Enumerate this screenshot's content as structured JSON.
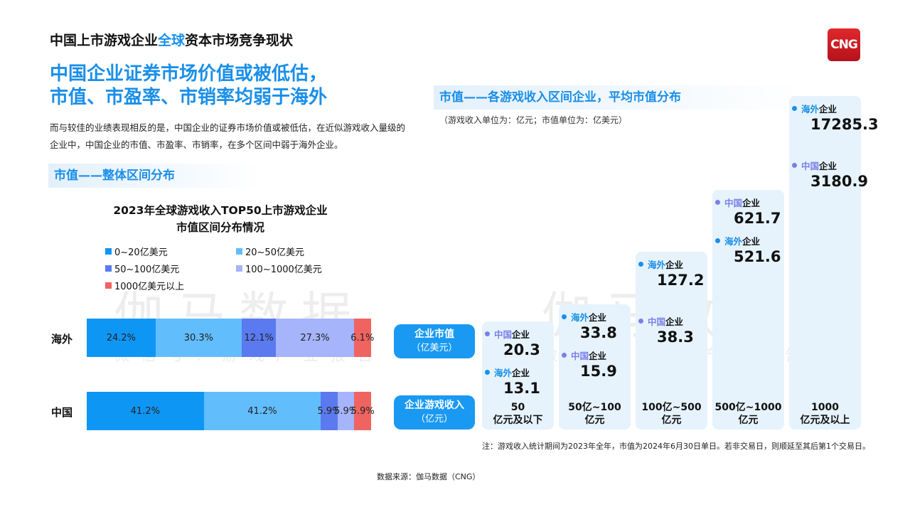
{
  "header": {
    "title_part1": "中国上市游戏企业",
    "title_highlight": "全球",
    "title_part2": "资本市场竞争现状",
    "logo": "CNG"
  },
  "headline": {
    "line1": "中国企业证券市场价值或被低估，",
    "line2": "市值、市盈率、市销率均弱于海外"
  },
  "description": "而与较佳的业绩表现相反的是，中国企业的证券市场价值或被低估，在近似游戏收入量级的企业中，中国企业的市值、市盈率、市销率，在多个区间中弱于海外企业。",
  "section1": "市值——整体区间分布",
  "section2": "市值——各游戏收入区间企业，平均市值分布",
  "unit_note": "（游戏收入单位为：亿元；市值单位为：亿美元）",
  "watermark": {
    "main": "伽马数据",
    "sub": "微信号：游戏产业报告"
  },
  "row_pills": [
    {
      "title": "企业市值",
      "unit": "（亿美元）"
    },
    {
      "title": "企业游戏收入",
      "unit": "（亿元）"
    }
  ],
  "footnote": "注：游戏收入统计期间为2023年全年，市值为2024年6月30日单日。若非交易日，则顺延至其后第1个交易日。",
  "source": "数据来源：伽马数据（CNG）",
  "colors": {
    "accent": "#1a8fe8",
    "china": "#7b7fe8",
    "overseas": "#1a8fe8"
  },
  "chart_data": [
    {
      "type": "bar",
      "orientation": "horizontal",
      "stacked": "percent",
      "title_line1": "2023年全球游戏收入TOP50上市游戏企业",
      "title_line2": "市值区间分布情况",
      "categories": [
        "海外",
        "中国"
      ],
      "legend_position": "top",
      "series": [
        {
          "name": "0~20亿美元",
          "color": "#0e96f5",
          "values": [
            24.2,
            41.2
          ],
          "labels": [
            "24.2%",
            "41.2%"
          ]
        },
        {
          "name": "20~50亿美元",
          "color": "#62bdfc",
          "values": [
            30.3,
            41.2
          ],
          "labels": [
            "30.3%",
            "41.2%"
          ]
        },
        {
          "name": "50~100亿美元",
          "color": "#5b7af0",
          "values": [
            12.1,
            5.9
          ],
          "labels": [
            "12.1%",
            "5.9%"
          ]
        },
        {
          "name": "100~1000亿美元",
          "color": "#a5b4fb",
          "values": [
            27.3,
            5.9
          ],
          "labels": [
            "27.3%",
            "5.9%"
          ]
        },
        {
          "name": "1000亿美元以上",
          "color": "#ef6461",
          "values": [
            6.1,
            5.9
          ],
          "labels": [
            "6.1%",
            "5.9%"
          ]
        }
      ]
    },
    {
      "type": "table",
      "columns": [
        {
          "range_line1": "50",
          "range_line2": "亿元及以下",
          "entries": [
            {
              "group": "中国",
              "suffix": "企业",
              "value": "20.3"
            },
            {
              "group": "海外",
              "suffix": "企业",
              "value": "13.1"
            }
          ]
        },
        {
          "range_line1": "50亿~100",
          "range_line2": "亿元",
          "entries": [
            {
              "group": "海外",
              "suffix": "企业",
              "value": "33.8"
            },
            {
              "group": "中国",
              "suffix": "企业",
              "value": "15.9"
            }
          ]
        },
        {
          "range_line1": "100亿~500",
          "range_line2": "亿元",
          "entries": [
            {
              "group": "海外",
              "suffix": "企业",
              "value": "127.2"
            },
            {
              "group": "中国",
              "suffix": "企业",
              "value": "38.3"
            }
          ]
        },
        {
          "range_line1": "500亿~1000",
          "range_line2": "亿元",
          "entries": [
            {
              "group": "中国",
              "suffix": "企业",
              "value": "621.7"
            },
            {
              "group": "海外",
              "suffix": "企业",
              "value": "521.6"
            }
          ]
        },
        {
          "range_line1": "1000",
          "range_line2": "亿元及以上",
          "entries": [
            {
              "group": "海外",
              "suffix": "企业",
              "value": "17285.3"
            },
            {
              "group": "中国",
              "suffix": "企业",
              "value": "3180.9"
            }
          ]
        }
      ]
    }
  ]
}
